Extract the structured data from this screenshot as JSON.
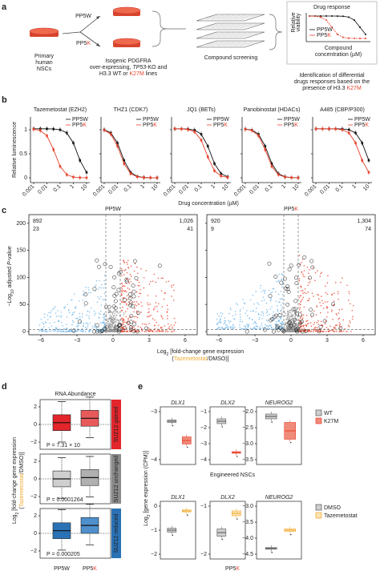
{
  "a": {
    "label": "a",
    "source": [
      "Primary",
      "human",
      "NSCs"
    ],
    "arm_w": "PP5W",
    "arm_k": [
      "PP5",
      "K"
    ],
    "description": [
      [
        "Isogenic PDGFRA"
      ],
      [
        "over-expressing, ",
        "TP53",
        "-KO and"
      ],
      [
        "H3.3 WT or ",
        "K27M",
        " lines"
      ]
    ],
    "screening": "Compound screening",
    "inset": {
      "title": "Drug response",
      "ylabel": [
        "Relative",
        "viability"
      ],
      "legend": [
        "PP5W",
        [
          "PP5",
          "K"
        ]
      ],
      "xlabel": [
        "Compound",
        "concentration (µM)"
      ]
    },
    "conclusion": [
      [
        "Identification of differential"
      ],
      [
        "drugs responses based on the"
      ],
      [
        "presence of H3.3 ",
        "K27M"
      ]
    ]
  },
  "b": {
    "label": "b",
    "ylabel": "Relative luminescence",
    "xlabel": "Drug concentration (µM)",
    "yticks": [
      "0",
      "0.5",
      "1"
    ],
    "xticks": [
      "0.001",
      "0.01",
      "0.1",
      "1",
      "10"
    ],
    "legend": [
      "PP5W",
      [
        "PP5",
        "K"
      ]
    ],
    "titles": [
      "Tazemetostat (EZH2)",
      "THZ1 (CDK7)",
      "JQ1 (BETs)",
      "Panobinostat (HDACs)",
      "A485 (CBP/P300)"
    ]
  },
  "c": {
    "label": "c",
    "ylabel": [
      "−Log",
      "10",
      " adjusted ",
      "P",
      "-value"
    ],
    "xlabel": [
      [
        "Log",
        "2",
        " [fold-change gene expression"
      ],
      [
        "(",
        "Tazemetostat",
        "/DMSO)]"
      ]
    ],
    "yticks": [
      "0",
      "50",
      "100",
      "150",
      "200"
    ],
    "xticks": [
      "−6",
      "−3",
      "0",
      "3",
      "6"
    ],
    "panels": [
      {
        "title": [
          "PP5W"
        ],
        "down": "892",
        "down_sig": "23",
        "up": "1,026",
        "up_sig": "41"
      },
      {
        "title": [
          "PP5",
          "K"
        ],
        "down": "920",
        "down_sig": "9",
        "up": "1,304",
        "up_sig": "74"
      }
    ]
  },
  "d": {
    "label": "d",
    "title": "RNA Abundance",
    "ylabel": [
      [
        "Log",
        "2",
        " [fold-change gene expression"
      ],
      [
        "(",
        "Tazemetostat",
        "/DMSO)]"
      ]
    ],
    "yticks": [
      "2",
      "0",
      "−2"
    ],
    "groups": [
      "SUZ12 gained",
      "SUZ12 unchanged",
      "SUZ12 reduced"
    ],
    "pvalues": [
      "P = 7.31 × 10",
      "P = 0.0001264",
      "P = 0.000205"
    ],
    "xlabels": [
      "PP5W",
      [
        "PP5",
        "K"
      ]
    ]
  },
  "e": {
    "label": "e",
    "ylabel": [
      "Log",
      "2",
      " [gene expression (CPM)]"
    ],
    "top": {
      "genes": [
        "DLX1",
        "DLX2",
        "NEUROG2"
      ],
      "yticks": [
        [
          "−3",
          "−4"
        ],
        [
          "−1",
          "−2",
          "−3",
          "−4"
        ],
        [
          "−2.0",
          "−2.5",
          "−3.0",
          "−3.5"
        ]
      ],
      "legend": [
        "WT",
        "K27M"
      ],
      "caption": "Engineered NSCs"
    },
    "bottom": {
      "genes": [
        "DLX1",
        "DLX2",
        "NEUROG2"
      ],
      "yticks": [
        [
          "0",
          "−1",
          "−2"
        ],
        [
          "−1",
          "−2"
        ],
        [
          "−3.0",
          "−3.5",
          "−4.0",
          "−4.5"
        ]
      ],
      "legend": [
        "DMSO",
        "Tazemetostat"
      ],
      "caption": [
        "PP5",
        "K"
      ]
    }
  }
}
